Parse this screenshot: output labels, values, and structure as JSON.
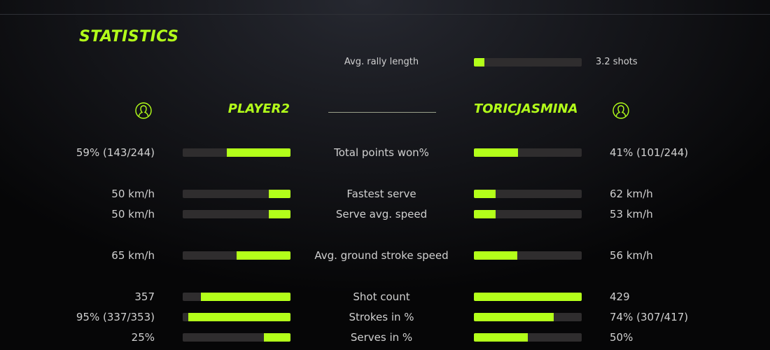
{
  "colors": {
    "accent": "#b3ff1a",
    "track": "#2f2d2e"
  },
  "title": "STATISTICS",
  "rally": {
    "label": "Avg. rally length",
    "value": "3.2 shots",
    "fill": 0.1
  },
  "players": {
    "left": {
      "name": "PLAYER2",
      "icon": "user-circle-icon"
    },
    "right": {
      "name": "TORICJASMINA",
      "icon": "user-circle-icon"
    }
  },
  "stats": [
    {
      "label": "Total points won%",
      "left": "59% (143/244)",
      "right": "41% (101/244)",
      "left_fill": 0.59,
      "right_fill": 0.41
    },
    {
      "label": "Fastest serve",
      "left": "50 km/h",
      "right": "62 km/h",
      "left_fill": 0.2,
      "right_fill": 0.2
    },
    {
      "label": "Serve avg. speed",
      "left": "50 km/h",
      "right": "53 km/h",
      "left_fill": 0.2,
      "right_fill": 0.2
    },
    {
      "label": "Avg. ground stroke speed",
      "left": "65 km/h",
      "right": "56 km/h",
      "left_fill": 0.5,
      "right_fill": 0.4
    },
    {
      "label": "Shot count",
      "left": "357",
      "right": "429",
      "left_fill": 0.83,
      "right_fill": 1.0
    },
    {
      "label": "Strokes in %",
      "left": "95% (337/353)",
      "right": "74% (307/417)",
      "left_fill": 0.95,
      "right_fill": 0.74
    },
    {
      "label": "Serves in %",
      "left": "25%",
      "right": "50%",
      "left_fill": 0.25,
      "right_fill": 0.5
    }
  ]
}
